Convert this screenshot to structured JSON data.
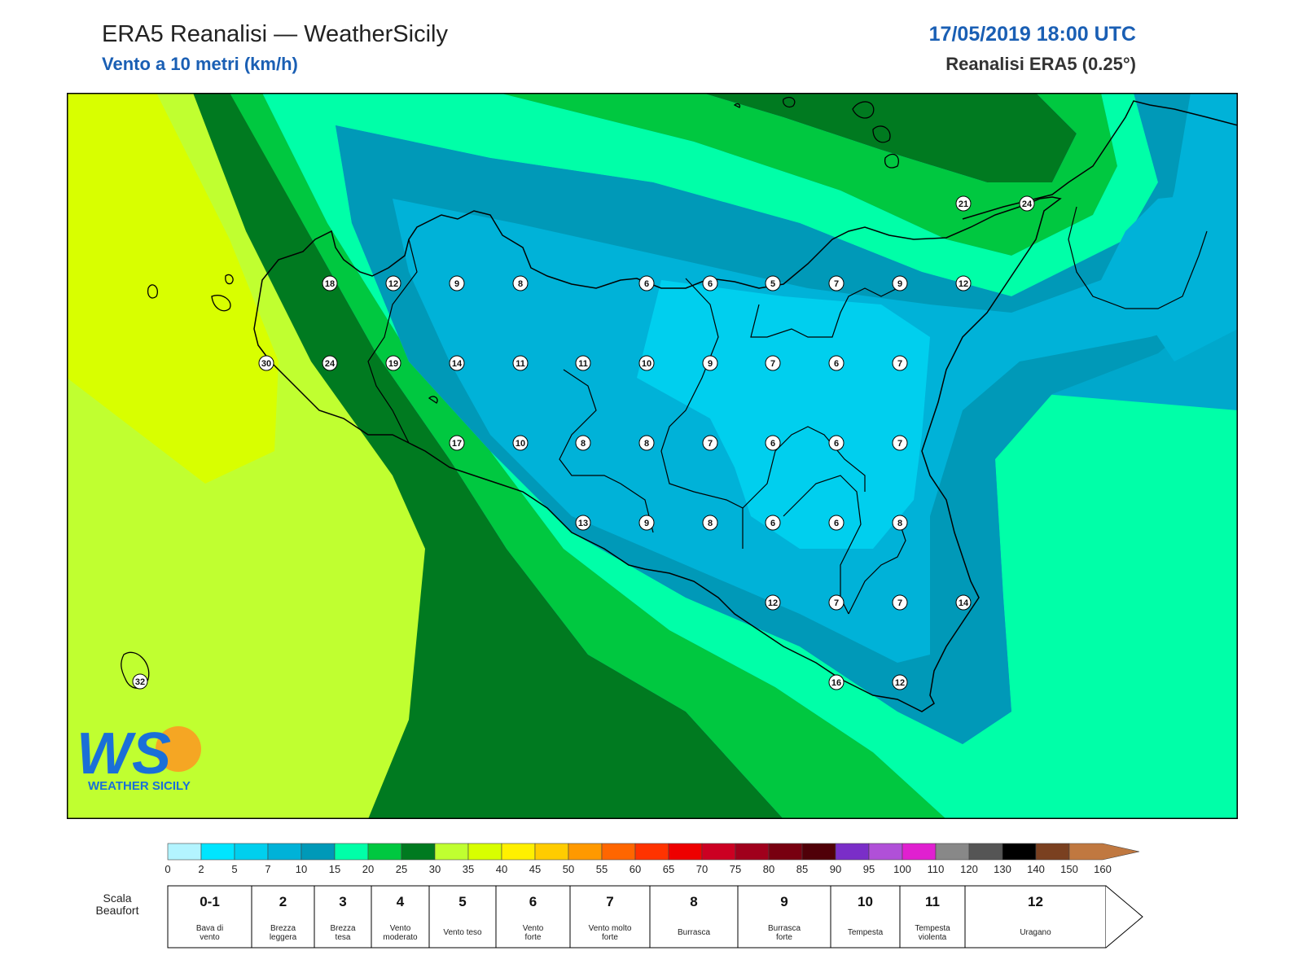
{
  "header": {
    "title": "ERA5 Reanalisi — WeatherSicily",
    "subtitle": "Vento a 10 metri (km/h)",
    "datetime": "17/05/2019 18:00 UTC",
    "model": "Reanalisi ERA5 (0.25°)"
  },
  "logo": {
    "letters": "WS",
    "text": "WEATHER SICILY"
  },
  "colorbar": {
    "colors": [
      "#b3f4ff",
      "#00e5ff",
      "#00cfee",
      "#00b2d8",
      "#0099b8",
      "#00ffa8",
      "#00c840",
      "#007a20",
      "#c0ff30",
      "#d8ff00",
      "#fff000",
      "#ffcc00",
      "#ff9900",
      "#ff6600",
      "#ff3300",
      "#ee0000",
      "#cc0022",
      "#a0001c",
      "#780010",
      "#500008",
      "#7a2ec8",
      "#b050d8",
      "#e020d0",
      "#888888",
      "#555555",
      "#000000",
      "#7a4020",
      "#c07840"
    ],
    "ticks": [
      "0",
      "2",
      "5",
      "7",
      "10",
      "15",
      "20",
      "25",
      "30",
      "35",
      "40",
      "45",
      "50",
      "55",
      "60",
      "65",
      "70",
      "75",
      "80",
      "85",
      "90",
      "95",
      "100",
      "110",
      "120",
      "130",
      "140",
      "150",
      "160"
    ]
  },
  "beaufort": {
    "label_line1": "Scala",
    "label_line2": "Beaufort",
    "cells": [
      {
        "num": "0-1",
        "desc1": "Bava di",
        "desc2": "vento"
      },
      {
        "num": "2",
        "desc1": "Brezza",
        "desc2": "leggera"
      },
      {
        "num": "3",
        "desc1": "Brezza",
        "desc2": "tesa"
      },
      {
        "num": "4",
        "desc1": "Vento",
        "desc2": "moderato"
      },
      {
        "num": "5",
        "desc1": "Vento teso",
        "desc2": ""
      },
      {
        "num": "6",
        "desc1": "Vento",
        "desc2": "forte"
      },
      {
        "num": "7",
        "desc1": "Vento molto",
        "desc2": "forte"
      },
      {
        "num": "8",
        "desc1": "Burrasca",
        "desc2": ""
      },
      {
        "num": "9",
        "desc1": "Burrasca",
        "desc2": "forte"
      },
      {
        "num": "10",
        "desc1": "Tempesta",
        "desc2": ""
      },
      {
        "num": "11",
        "desc1": "Tempesta",
        "desc2": "violenta"
      },
      {
        "num": "12",
        "desc1": "Uragano",
        "desc2": ""
      }
    ]
  },
  "wind_values": [
    {
      "id": "v1",
      "value": "21"
    },
    {
      "id": "v2",
      "value": "24"
    },
    {
      "id": "v3",
      "value": "18"
    },
    {
      "id": "v4",
      "value": "12"
    },
    {
      "id": "v5",
      "value": "9"
    },
    {
      "id": "v6",
      "value": "8"
    },
    {
      "id": "v7",
      "value": "6"
    },
    {
      "id": "v8",
      "value": "6"
    },
    {
      "id": "v9",
      "value": "5"
    },
    {
      "id": "v10",
      "value": "7"
    },
    {
      "id": "v11",
      "value": "9"
    },
    {
      "id": "v12",
      "value": "12"
    },
    {
      "id": "v13",
      "value": "30"
    },
    {
      "id": "v14",
      "value": "24"
    },
    {
      "id": "v15",
      "value": "19"
    },
    {
      "id": "v16",
      "value": "14"
    },
    {
      "id": "v17",
      "value": "11"
    },
    {
      "id": "v18",
      "value": "11"
    },
    {
      "id": "v19",
      "value": "10"
    },
    {
      "id": "v20",
      "value": "9"
    },
    {
      "id": "v21",
      "value": "7"
    },
    {
      "id": "v22",
      "value": "6"
    },
    {
      "id": "v23",
      "value": "7"
    },
    {
      "id": "v24",
      "value": "17"
    },
    {
      "id": "v25",
      "value": "10"
    },
    {
      "id": "v26",
      "value": "8"
    },
    {
      "id": "v27",
      "value": "8"
    },
    {
      "id": "v28",
      "value": "7"
    },
    {
      "id": "v29",
      "value": "6"
    },
    {
      "id": "v30",
      "value": "6"
    },
    {
      "id": "v31",
      "value": "7"
    },
    {
      "id": "v32",
      "value": "13"
    },
    {
      "id": "v33",
      "value": "9"
    },
    {
      "id": "v34",
      "value": "8"
    },
    {
      "id": "v35",
      "value": "6"
    },
    {
      "id": "v36",
      "value": "6"
    },
    {
      "id": "v37",
      "value": "8"
    },
    {
      "id": "v38",
      "value": "12"
    },
    {
      "id": "v39",
      "value": "7"
    },
    {
      "id": "v40",
      "value": "7"
    },
    {
      "id": "v41",
      "value": "14"
    },
    {
      "id": "v42",
      "value": "16"
    },
    {
      "id": "v43",
      "value": "12"
    },
    {
      "id": "v44",
      "value": "32"
    }
  ]
}
